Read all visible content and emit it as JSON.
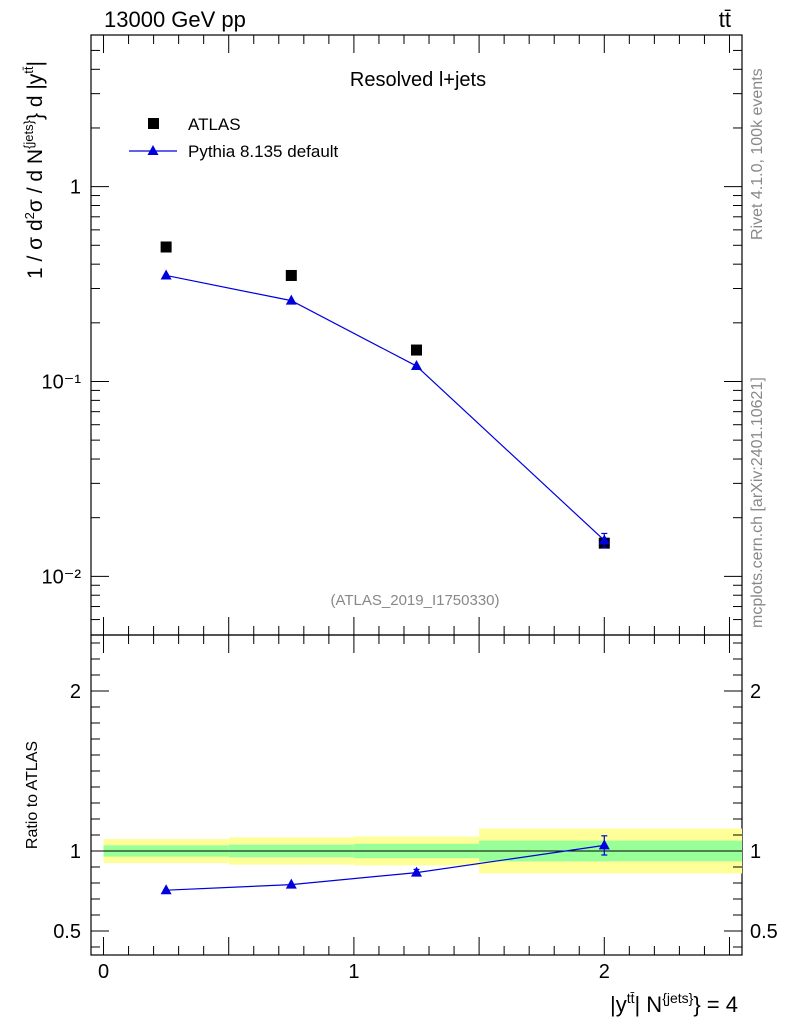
{
  "header": {
    "energy_label": "13000 GeV pp",
    "process_label": "tt̄"
  },
  "side_labels": {
    "rivet": "Rivet 4.1.0,  100k events",
    "source": "mcplots.cern.ch [arXiv:2401.10621]"
  },
  "analysis_label": "(ATLAS_2019_I1750330)",
  "axis_labels": {
    "ylabel_main": "1 / σ d²σ / d N^{jets} d |y^{tt̄}|",
    "ylabel_ratio": "Ratio to ATLAS",
    "xlabel": "|y^{tt̄}| N^{jets} = 4"
  },
  "colors": {
    "data": "#000000",
    "mc": "#0000dd",
    "band_inner": "#99ff99",
    "band_outer": "#ffff99"
  },
  "chart_data": [
    {
      "type": "scatter",
      "title": "Resolved l+jets",
      "xlabel": "|y^{tt̄}| N^{jets} = 4",
      "ylabel": "1 / σ d²σ / d N^{jets} d |y^{tt̄}|",
      "yscale": "log",
      "xlim": [
        -0.05,
        2.55
      ],
      "ylim": [
        0.005,
        6
      ],
      "y_ticks": [
        {
          "value": 1,
          "label": "1"
        },
        {
          "value": 0.1,
          "label": "10⁻¹"
        },
        {
          "value": 0.01,
          "label": "10⁻²"
        }
      ],
      "legend_position": "top-left",
      "series": [
        {
          "name": "ATLAS",
          "marker": "square",
          "x": [
            0.25,
            0.75,
            1.25,
            2.0
          ],
          "y": [
            0.49,
            0.35,
            0.145,
            0.0148
          ]
        },
        {
          "name": "Pythia 8.135 default",
          "marker": "triangle",
          "line": true,
          "x": [
            0.25,
            0.75,
            1.25,
            2.0
          ],
          "y": [
            0.35,
            0.26,
            0.12,
            0.0153
          ],
          "err": [
            0,
            0,
            0,
            0.0013
          ]
        }
      ]
    },
    {
      "type": "line",
      "title": "",
      "xlabel": "|y^{tt̄}| N^{jets} = 4",
      "ylabel": "Ratio to ATLAS",
      "xlim": [
        -0.05,
        2.55
      ],
      "ylim": [
        0.35,
        2.35
      ],
      "x_ticks": [
        0,
        1,
        2
      ],
      "y_ticks": [
        {
          "value": 0.5,
          "label": "0.5"
        },
        {
          "value": 1,
          "label": "1"
        },
        {
          "value": 2,
          "label": "2"
        }
      ],
      "bins": [
        {
          "x_lo": 0.0,
          "x_hi": 0.5,
          "inner": [
            0.965,
            1.035
          ],
          "outer": [
            0.925,
            1.075
          ]
        },
        {
          "x_lo": 0.5,
          "x_hi": 1.0,
          "inner": [
            0.96,
            1.04
          ],
          "outer": [
            0.915,
            1.085
          ]
        },
        {
          "x_lo": 1.0,
          "x_hi": 1.5,
          "inner": [
            0.955,
            1.045
          ],
          "outer": [
            0.91,
            1.09
          ]
        },
        {
          "x_lo": 1.5,
          "x_hi": 2.55,
          "inner": [
            0.935,
            1.065
          ],
          "outer": [
            0.86,
            1.14
          ]
        }
      ],
      "series": [
        {
          "name": "Pythia 8.135 default",
          "x": [
            0.25,
            0.75,
            1.25,
            2.0
          ],
          "y": [
            0.755,
            0.79,
            0.865,
            1.035
          ],
          "err": [
            0,
            0,
            0.02,
            0.06
          ]
        }
      ]
    }
  ]
}
